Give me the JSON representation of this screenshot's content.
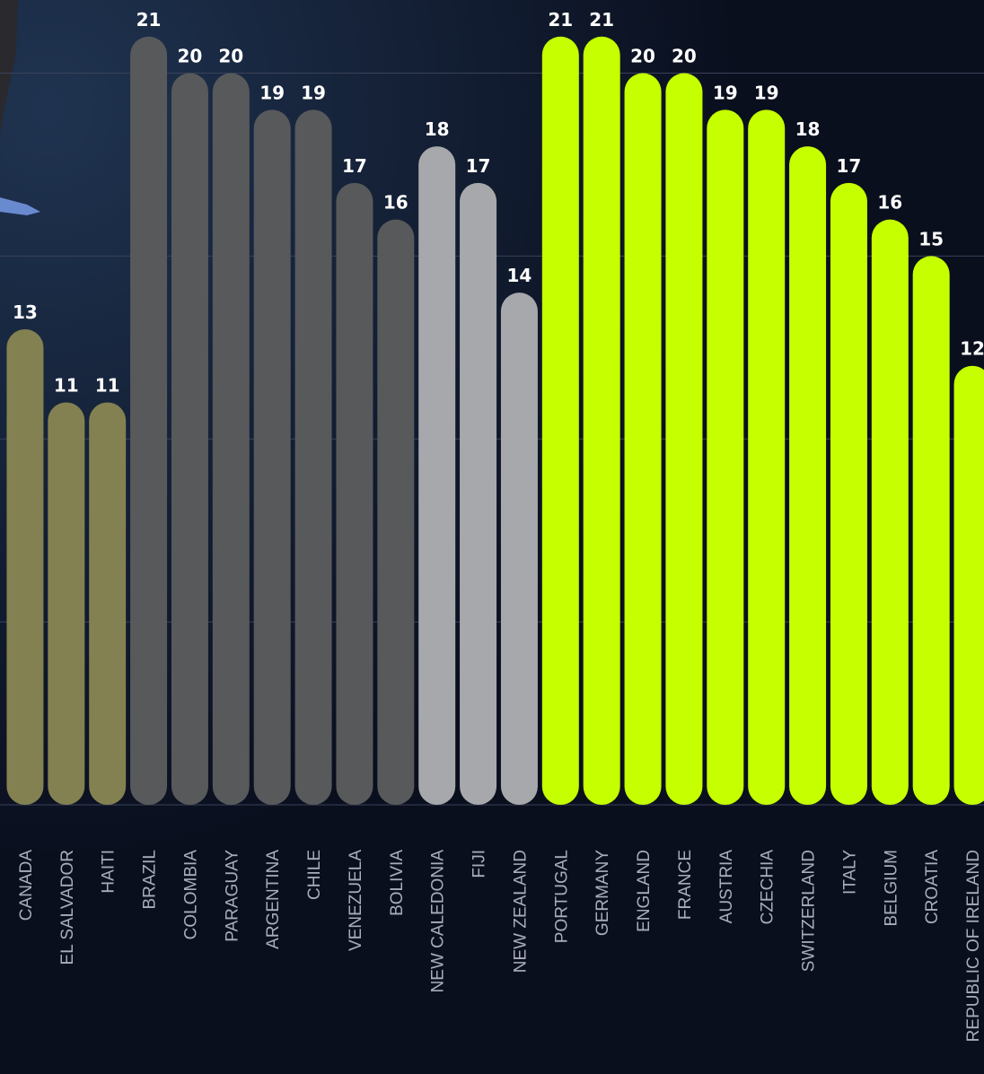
{
  "chart_data": {
    "type": "bar",
    "categories": [
      "CANADA",
      "EL SALVADOR",
      "HAITI",
      "BRAZIL",
      "COLOMBIA",
      "PARAGUAY",
      "ARGENTINA",
      "CHILE",
      "VENEZUELA",
      "BOLIVIA",
      "NEW CALEDONIA",
      "FIJI",
      "NEW ZEALAND",
      "PORTUGAL",
      "GERMANY",
      "ENGLAND",
      "FRANCE",
      "AUSTRIA",
      "CZECHIA",
      "SWITZERLAND",
      "ITALY",
      "BELGIUM",
      "CROATIA",
      "REPUBLIC OF IRELAND"
    ],
    "values": [
      13,
      11,
      11,
      21,
      20,
      20,
      19,
      19,
      17,
      16,
      18,
      17,
      14,
      21,
      21,
      20,
      20,
      19,
      19,
      18,
      17,
      16,
      15,
      12
    ],
    "colors": [
      "#838151",
      "#838151",
      "#838151",
      "#58595b",
      "#58595b",
      "#58595b",
      "#58595b",
      "#58595b",
      "#58595b",
      "#58595b",
      "#a7a8ab",
      "#a7a8ab",
      "#a7a8ab",
      "#c5ff00",
      "#c5ff00",
      "#c5ff00",
      "#c5ff00",
      "#c5ff00",
      "#c5ff00",
      "#c5ff00",
      "#c5ff00",
      "#c5ff00",
      "#c5ff00",
      "#c5ff00"
    ],
    "ylim": [
      0,
      22
    ],
    "yticks": [
      0,
      5,
      10,
      15,
      20
    ],
    "grid": true
  }
}
